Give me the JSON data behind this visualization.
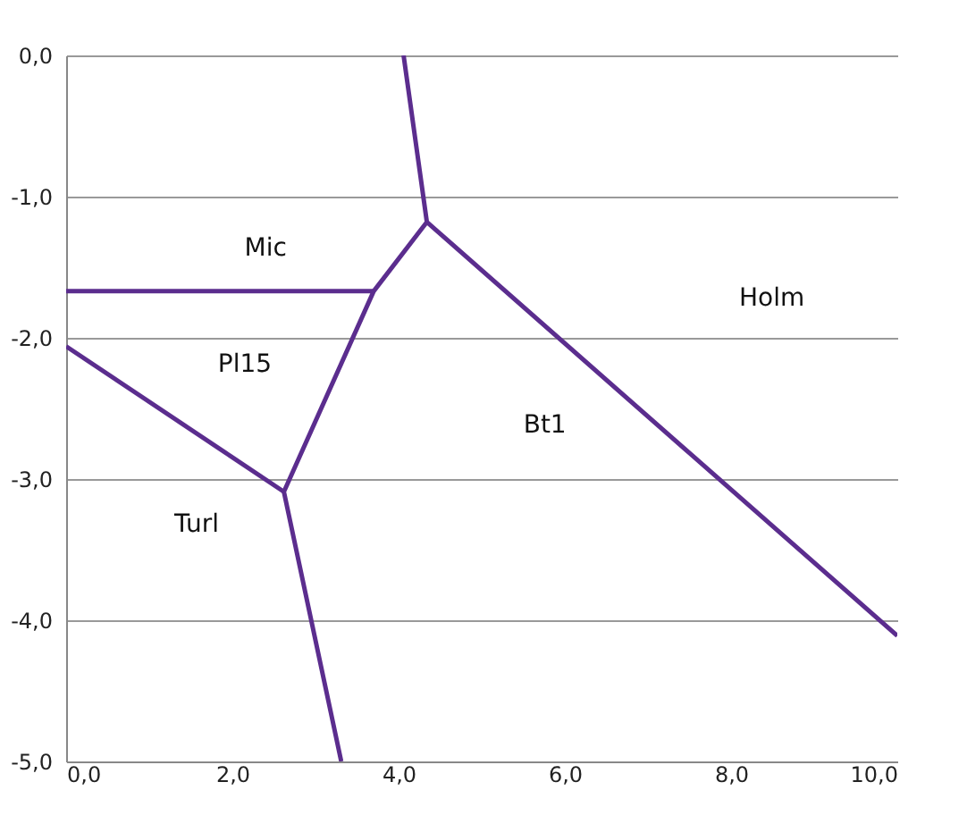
{
  "chart_data": {
    "type": "line",
    "xlim": [
      0,
      10
    ],
    "ylim": [
      -5,
      0
    ],
    "grid": "y",
    "legend": false,
    "marker": "none",
    "line_style": "solid",
    "xticks": [
      {
        "value": 0,
        "label": "0,0"
      },
      {
        "value": 2,
        "label": "2,0"
      },
      {
        "value": 4,
        "label": "4,0"
      },
      {
        "value": 6,
        "label": "6,0"
      },
      {
        "value": 8,
        "label": "8,0"
      },
      {
        "value": 10,
        "label": "10,0"
      }
    ],
    "yticks": [
      {
        "value": 0,
        "label": "0,0"
      },
      {
        "value": -1,
        "label": "-1,0"
      },
      {
        "value": -2,
        "label": "-2,0"
      },
      {
        "value": -3,
        "label": "-3,0"
      },
      {
        "value": -4,
        "label": "-4,0"
      },
      {
        "value": -5,
        "label": "-5,0"
      }
    ],
    "series": [
      {
        "color": "#5b2d8e",
        "x": [
          4.06,
          4.34,
          10
        ],
        "values": [
          0,
          -1.18,
          -4.11
        ]
      },
      {
        "color": "#5b2d8e",
        "x": [
          4.34,
          3.7,
          2.62,
          3.31
        ],
        "values": [
          -1.18,
          -1.67,
          -3.09,
          -5
        ]
      },
      {
        "color": "#5b2d8e",
        "x": [
          0,
          3.7
        ],
        "values": [
          -1.67,
          -1.67
        ]
      },
      {
        "color": "#5b2d8e",
        "x": [
          0,
          2.62
        ],
        "values": [
          -2.06,
          -3.09
        ]
      }
    ],
    "annotations": [
      "Mic",
      "Pl15",
      "Bt1",
      "Holm",
      "Turl"
    ]
  }
}
